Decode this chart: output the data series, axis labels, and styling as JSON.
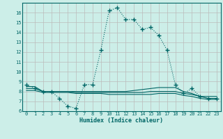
{
  "xlabel": "Humidex (Indice chaleur)",
  "bg_color": "#cceee8",
  "grid_color": "#aaaaaa",
  "line_color": "#006666",
  "ylim": [
    6,
    17
  ],
  "xlim": [
    -0.5,
    23.5
  ],
  "yticks": [
    6,
    7,
    8,
    9,
    10,
    11,
    12,
    13,
    14,
    15,
    16
  ],
  "xticks": [
    0,
    1,
    2,
    3,
    4,
    5,
    6,
    7,
    8,
    9,
    10,
    11,
    12,
    13,
    14,
    15,
    16,
    17,
    18,
    19,
    20,
    21,
    22,
    23
  ],
  "main_x": [
    0,
    1,
    2,
    3,
    4,
    5,
    6,
    7,
    8,
    9,
    10,
    11,
    12,
    13,
    14,
    15,
    16,
    17,
    18,
    19,
    20,
    21,
    22,
    23
  ],
  "main_y": [
    8.7,
    8.3,
    8.0,
    8.0,
    7.3,
    6.5,
    6.3,
    8.7,
    8.7,
    12.2,
    16.2,
    16.5,
    15.3,
    15.3,
    14.3,
    14.5,
    13.7,
    12.2,
    8.7,
    7.8,
    8.3,
    7.5,
    7.3,
    7.3
  ],
  "flat1_y": [
    8.5,
    8.5,
    8.0,
    8.0,
    8.0,
    8.0,
    8.0,
    8.0,
    8.0,
    8.0,
    8.0,
    8.0,
    8.0,
    8.1,
    8.2,
    8.3,
    8.4,
    8.4,
    8.4,
    8.0,
    7.8,
    7.5,
    7.5,
    7.5
  ],
  "flat2_y": [
    8.3,
    8.3,
    8.0,
    8.0,
    8.0,
    8.0,
    7.9,
    7.9,
    7.9,
    7.9,
    7.9,
    7.9,
    7.9,
    7.9,
    7.9,
    8.0,
    8.0,
    8.0,
    8.0,
    7.8,
    7.7,
    7.5,
    7.3,
    7.3
  ],
  "flat3_y": [
    8.1,
    8.1,
    7.9,
    7.9,
    7.9,
    7.9,
    7.8,
    7.8,
    7.8,
    7.8,
    7.7,
    7.7,
    7.7,
    7.7,
    7.7,
    7.7,
    7.8,
    7.8,
    7.8,
    7.6,
    7.5,
    7.3,
    7.2,
    7.2
  ]
}
